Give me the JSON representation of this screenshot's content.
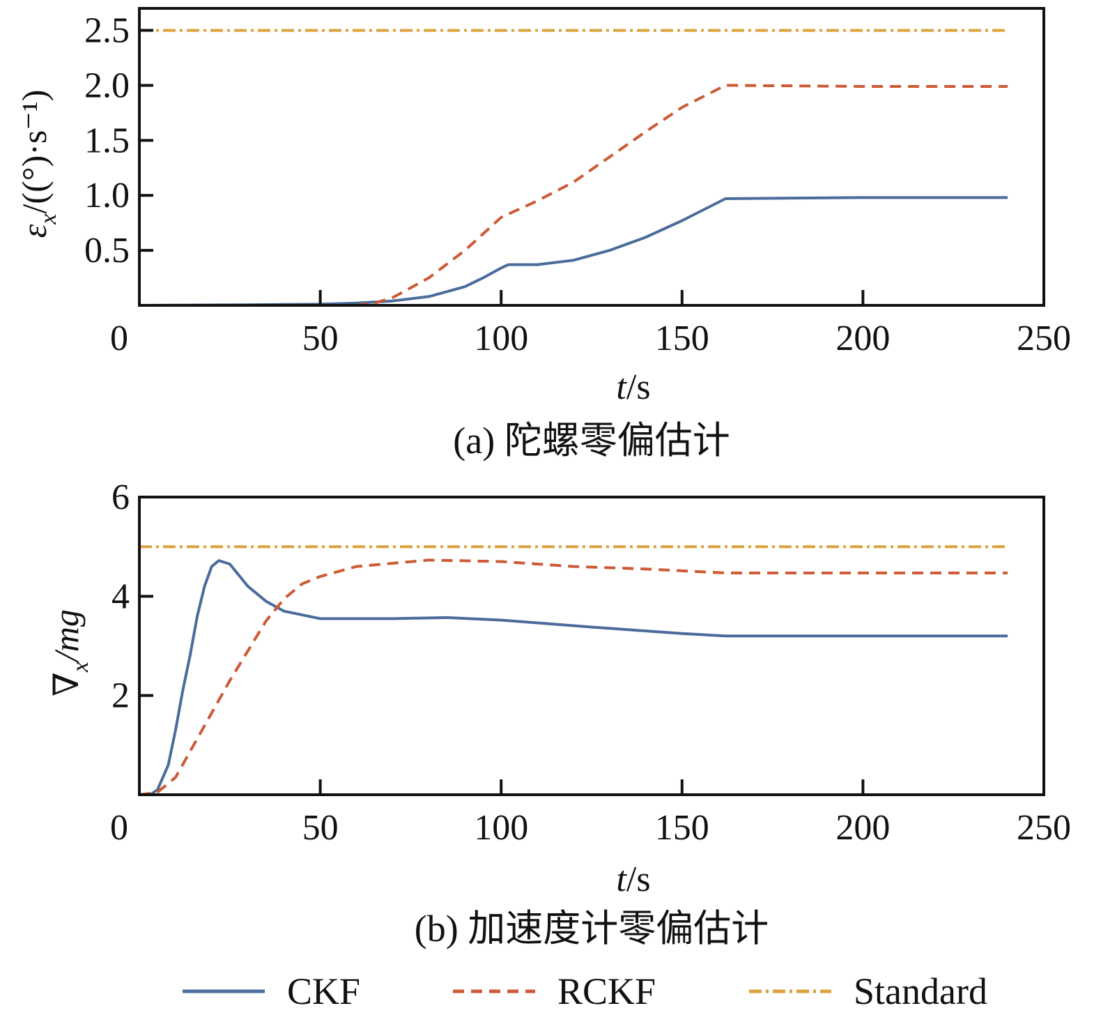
{
  "colors": {
    "CKF": "#4a6c9b",
    "RCKF": "#cc5a34",
    "Standard": "#dca23e",
    "axis": "#111111"
  },
  "legend": [
    {
      "label": "CKF",
      "style": "solid"
    },
    {
      "label": "RCKF",
      "style": "dashed"
    },
    {
      "label": "Standard",
      "style": "dashdot"
    }
  ],
  "chart_data": [
    {
      "type": "line",
      "caption": "(a) 陀螺零偏估计",
      "xlabel_italic": "t",
      "xlabel_unit": "/s",
      "ylabel_sym": "ε",
      "ylabel_sub": "x",
      "ylabel_unit": "/((°)·s⁻¹)",
      "xlim": [
        0,
        250
      ],
      "ylim": [
        0,
        2.7
      ],
      "xticks": [
        0,
        50,
        100,
        150,
        200,
        250
      ],
      "xtick_labels": [
        "0",
        "50",
        "100",
        "150",
        "200",
        "250"
      ],
      "yticks": [
        0.5,
        1.0,
        1.5,
        2.0,
        2.5
      ],
      "ytick_labels": [
        "0.5",
        "1.0",
        "1.5",
        "2.0",
        "2.5"
      ],
      "series": [
        {
          "name": "CKF",
          "x": [
            0,
            30,
            50,
            60,
            70,
            75,
            80,
            90,
            95,
            100,
            102,
            110,
            120,
            130,
            140,
            150,
            162,
            200,
            240
          ],
          "y": [
            0,
            0.005,
            0.01,
            0.02,
            0.04,
            0.06,
            0.08,
            0.17,
            0.25,
            0.34,
            0.37,
            0.37,
            0.41,
            0.5,
            0.62,
            0.77,
            0.97,
            0.98,
            0.98
          ]
        },
        {
          "name": "RCKF",
          "x": [
            0,
            40,
            60,
            65,
            70,
            80,
            90,
            100,
            110,
            120,
            130,
            140,
            150,
            162,
            200,
            240
          ],
          "y": [
            0,
            0,
            0,
            0.02,
            0.07,
            0.25,
            0.5,
            0.8,
            0.95,
            1.12,
            1.35,
            1.58,
            1.8,
            2.0,
            1.99,
            1.99
          ]
        },
        {
          "name": "Standard",
          "x": [
            0,
            240
          ],
          "y": [
            2.5,
            2.5
          ]
        }
      ]
    },
    {
      "type": "line",
      "caption": "(b) 加速度计零偏估计",
      "xlabel_italic": "t",
      "xlabel_unit": "/s",
      "ylabel_sym": "∇",
      "ylabel_sub": "x",
      "ylabel_unit": "/mg",
      "xlim": [
        0,
        250
      ],
      "ylim": [
        0,
        6
      ],
      "xticks": [
        0,
        50,
        100,
        150,
        200,
        250
      ],
      "xtick_labels": [
        "0",
        "50",
        "100",
        "150",
        "200",
        "250"
      ],
      "yticks": [
        2,
        4,
        6
      ],
      "ytick_labels": [
        "2",
        "4",
        "6"
      ],
      "series": [
        {
          "name": "CKF",
          "x": [
            0,
            3,
            5,
            8,
            10,
            12,
            14,
            16,
            18,
            20,
            22,
            25,
            30,
            35,
            40,
            50,
            70,
            85,
            100,
            125,
            150,
            162,
            240
          ],
          "y": [
            0,
            0,
            0.1,
            0.6,
            1.3,
            2.1,
            2.8,
            3.6,
            4.2,
            4.6,
            4.72,
            4.65,
            4.2,
            3.9,
            3.7,
            3.55,
            3.55,
            3.57,
            3.52,
            3.38,
            3.25,
            3.2,
            3.2
          ]
        },
        {
          "name": "RCKF",
          "x": [
            0,
            5,
            10,
            15,
            20,
            25,
            30,
            35,
            40,
            45,
            50,
            60,
            80,
            100,
            120,
            140,
            162,
            240
          ],
          "y": [
            0,
            0.05,
            0.35,
            1.0,
            1.65,
            2.3,
            2.9,
            3.5,
            3.95,
            4.25,
            4.4,
            4.6,
            4.73,
            4.7,
            4.6,
            4.55,
            4.47,
            4.47
          ]
        },
        {
          "name": "Standard",
          "x": [
            0,
            240
          ],
          "y": [
            5,
            5
          ]
        }
      ]
    }
  ]
}
